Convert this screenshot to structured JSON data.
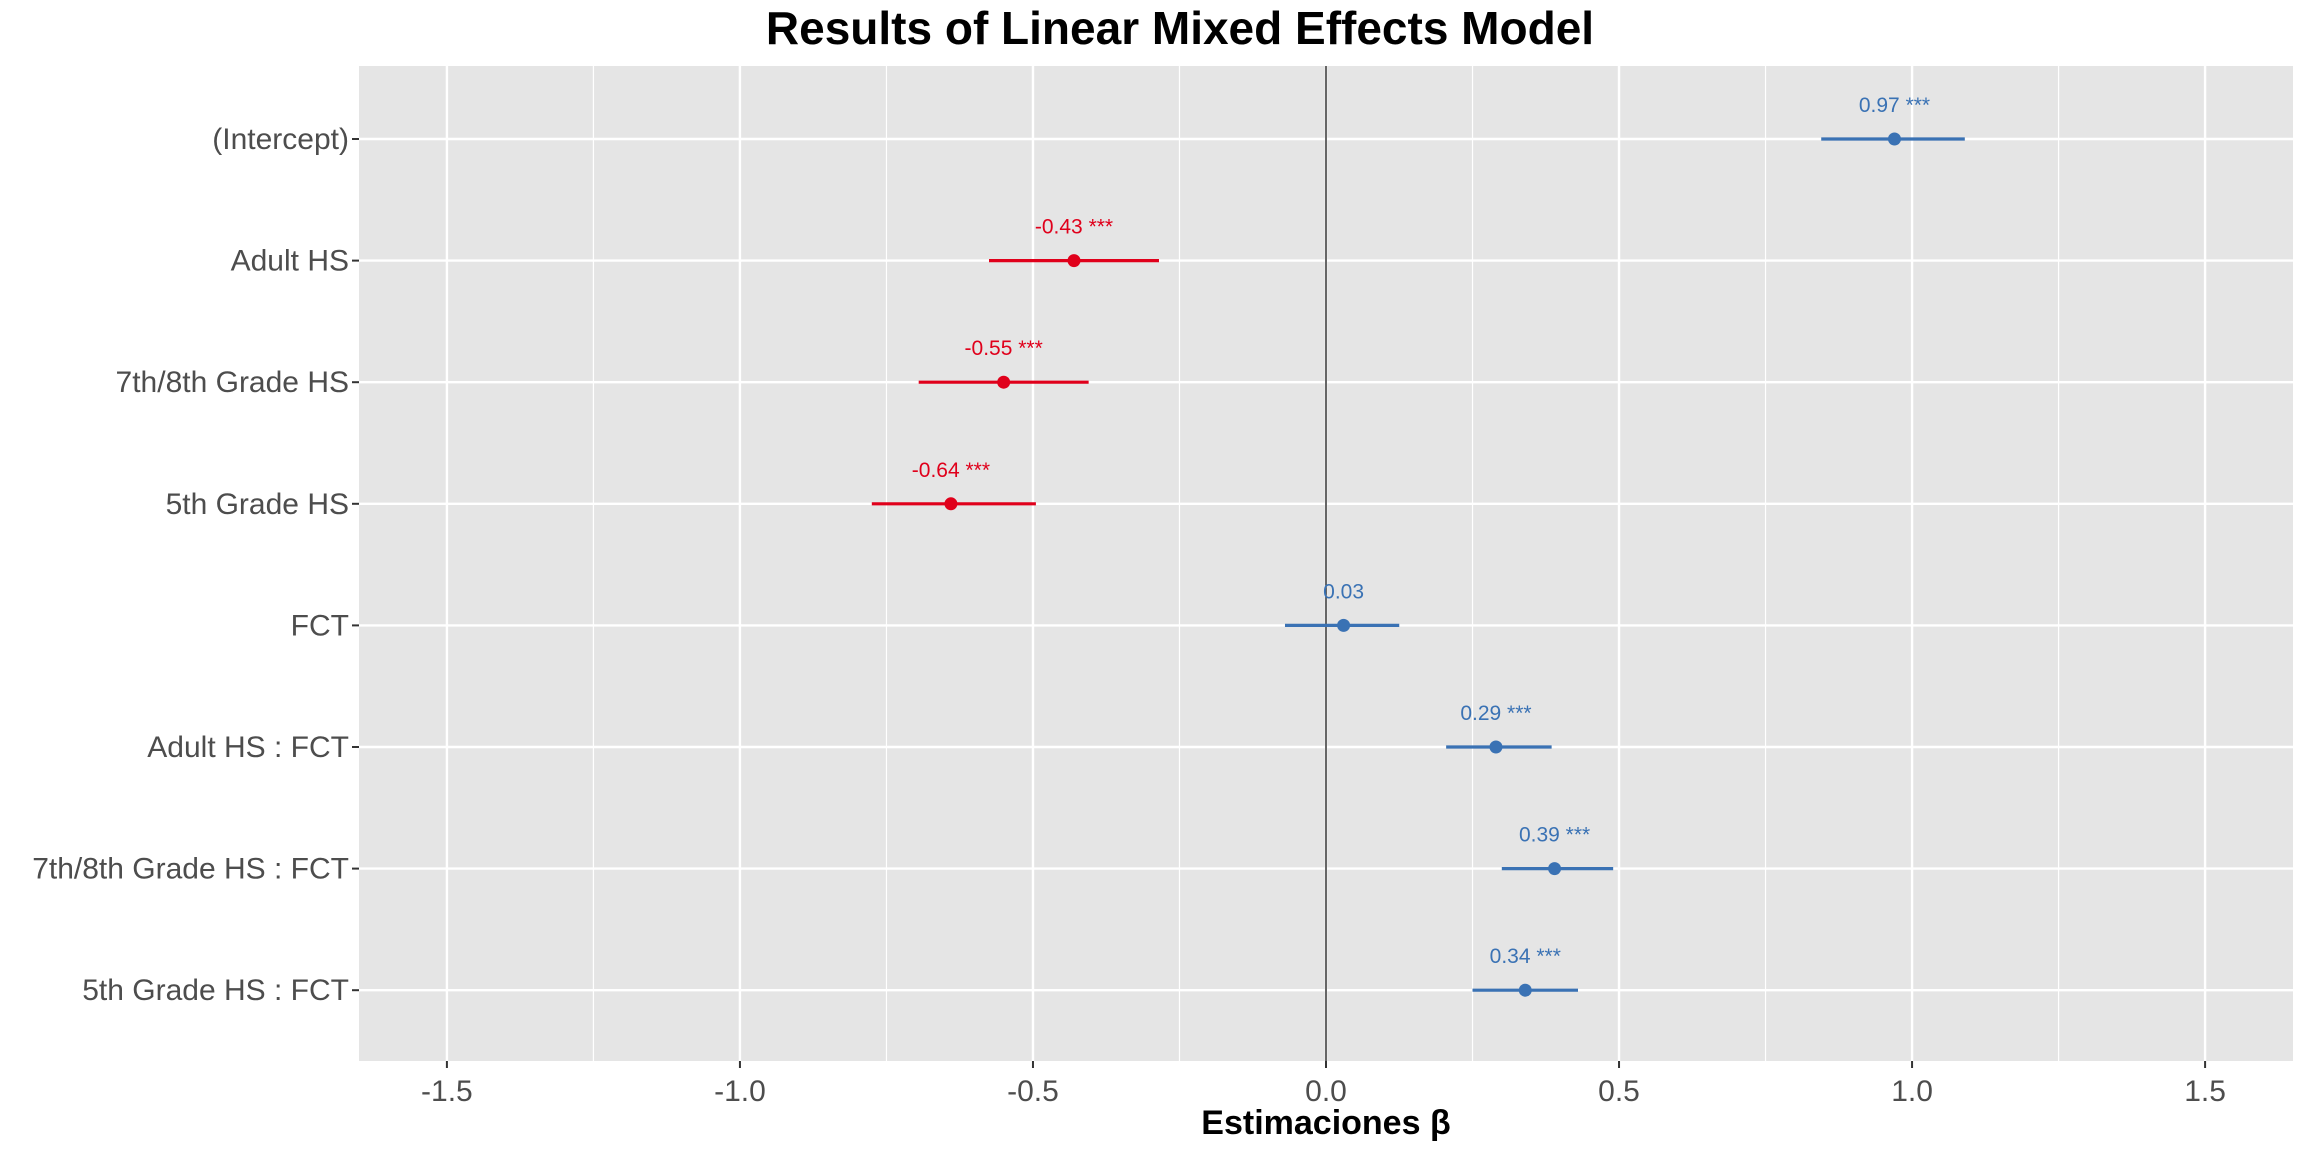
{
  "colors": {
    "panel_background": "#e5e5e5",
    "grid": "#ffffff",
    "significant_negative": "#e0001b",
    "positive": "#3a72b4",
    "zero_line": "#333333"
  },
  "chart_data": {
    "type": "forest",
    "title": "Results of Linear Mixed Effects Model",
    "xlabel": "Estimaciones β",
    "ylabel": "",
    "xlim": [
      -1.65,
      1.65
    ],
    "x_ticks": [
      -1.5,
      -1.0,
      -0.5,
      0.0,
      0.5,
      1.0,
      1.5
    ],
    "x_tick_labels": [
      "-1.5",
      "-1.0",
      "-0.5",
      "0.0",
      "0.5",
      "1.0",
      "1.5"
    ],
    "grid": true,
    "reference_line": 0,
    "terms": [
      {
        "label": "(Intercept)",
        "estimate": 0.97,
        "ci": [
          0.845,
          1.09
        ],
        "annotation": "0.97 ***",
        "color": "#3a72b4"
      },
      {
        "label": "Adult HS",
        "estimate": -0.43,
        "ci": [
          -0.575,
          -0.285
        ],
        "annotation": "-0.43 ***",
        "color": "#e0001b"
      },
      {
        "label": "7th/8th Grade HS",
        "estimate": -0.55,
        "ci": [
          -0.695,
          -0.405
        ],
        "annotation": "-0.55 ***",
        "color": "#e0001b"
      },
      {
        "label": "5th Grade HS",
        "estimate": -0.64,
        "ci": [
          -0.775,
          -0.495
        ],
        "annotation": "-0.64 ***",
        "color": "#e0001b"
      },
      {
        "label": "FCT",
        "estimate": 0.03,
        "ci": [
          -0.07,
          0.125
        ],
        "annotation": "0.03",
        "color": "#3a72b4"
      },
      {
        "label": "Adult HS : FCT",
        "estimate": 0.29,
        "ci": [
          0.205,
          0.385
        ],
        "annotation": "0.29 ***",
        "color": "#3a72b4"
      },
      {
        "label": "7th/8th Grade HS : FCT",
        "estimate": 0.39,
        "ci": [
          0.3,
          0.49
        ],
        "annotation": "0.39 ***",
        "color": "#3a72b4"
      },
      {
        "label": "5th Grade HS : FCT",
        "estimate": 0.34,
        "ci": [
          0.25,
          0.43
        ],
        "annotation": "0.34 ***",
        "color": "#3a72b4"
      }
    ]
  }
}
